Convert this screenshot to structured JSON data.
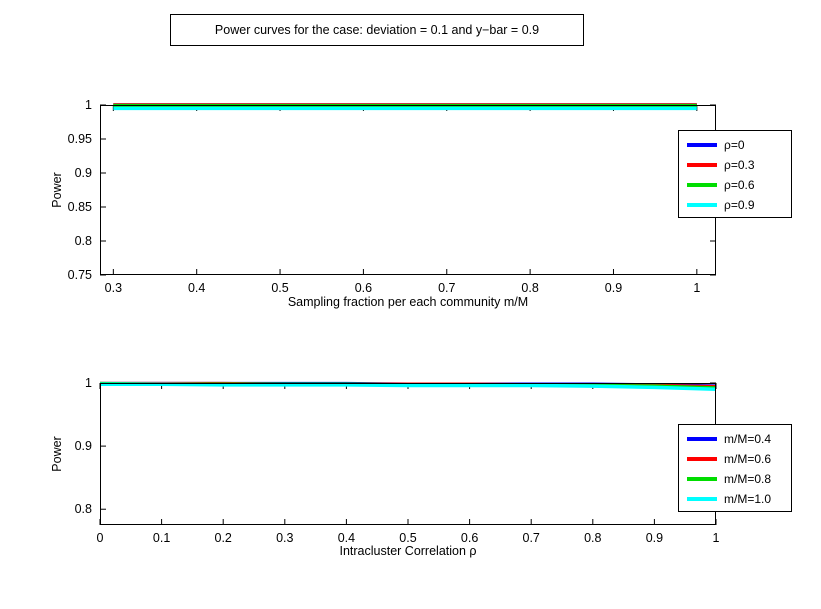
{
  "figure": {
    "title": "Power curves for the case: deviation = 0.1 and y−bar = 0.9",
    "background": "#ffffff"
  },
  "chart_data": [
    {
      "type": "line",
      "title": "",
      "xlabel": "Sampling fraction per each community m/M",
      "ylabel": "Power",
      "xlim": [
        0.284,
        1.023
      ],
      "ylim": [
        0.75,
        1.0
      ],
      "xticks": [
        0.3,
        0.4,
        0.5,
        0.6,
        0.7,
        0.8,
        0.9,
        1
      ],
      "yticks": [
        0.75,
        0.8,
        0.85,
        0.9,
        0.95,
        1
      ],
      "grid": false,
      "legend_position": "right-outside",
      "x": [
        0.3,
        0.4,
        0.5,
        0.6,
        0.7,
        0.8,
        0.9,
        1.0
      ],
      "series": [
        {
          "name": "ρ=0",
          "color": "#0000ff",
          "values": [
            1,
            1,
            1,
            1,
            1,
            1,
            1,
            1
          ]
        },
        {
          "name": "ρ=0.3",
          "color": "#ff0000",
          "values": [
            1,
            1,
            1,
            1,
            1,
            1,
            1,
            1
          ]
        },
        {
          "name": "ρ=0.6",
          "color": "#00dd00",
          "values": [
            0.999,
            0.999,
            0.999,
            0.999,
            0.999,
            0.999,
            0.999,
            0.999
          ]
        },
        {
          "name": "ρ=0.9",
          "color": "#00ffff",
          "values": [
            0.995,
            0.995,
            0.995,
            0.995,
            0.995,
            0.995,
            0.995,
            0.995
          ]
        }
      ]
    },
    {
      "type": "line",
      "title": "",
      "xlabel": "Intracluster Correlation ρ",
      "ylabel": "Power",
      "xlim": [
        0,
        1
      ],
      "ylim": [
        0.775,
        1.0
      ],
      "xticks": [
        0,
        0.1,
        0.2,
        0.3,
        0.4,
        0.5,
        0.6,
        0.7,
        0.8,
        0.9,
        1
      ],
      "yticks": [
        0.8,
        0.9,
        1
      ],
      "grid": false,
      "legend_position": "right-outside",
      "x": [
        0,
        0.1,
        0.2,
        0.3,
        0.4,
        0.5,
        0.6,
        0.7,
        0.8,
        0.9,
        1.0
      ],
      "series": [
        {
          "name": "m/M=0.4",
          "color": "#0000ff",
          "values": [
            0.999,
            0.999,
            0.999,
            0.999,
            0.999,
            0.998,
            0.998,
            0.998,
            0.998,
            0.997,
            0.995
          ]
        },
        {
          "name": "m/M=0.6",
          "color": "#ff0000",
          "values": [
            0.999,
            0.999,
            0.999,
            0.998,
            0.998,
            0.998,
            0.998,
            0.997,
            0.997,
            0.996,
            0.994
          ]
        },
        {
          "name": "m/M=0.8",
          "color": "#00dd00",
          "values": [
            0.999,
            0.998,
            0.998,
            0.998,
            0.998,
            0.997,
            0.997,
            0.997,
            0.996,
            0.995,
            0.992
          ]
        },
        {
          "name": "m/M=1.0",
          "color": "#00ffff",
          "values": [
            0.998,
            0.998,
            0.997,
            0.997,
            0.997,
            0.996,
            0.996,
            0.996,
            0.995,
            0.993,
            0.99
          ]
        }
      ]
    }
  ]
}
